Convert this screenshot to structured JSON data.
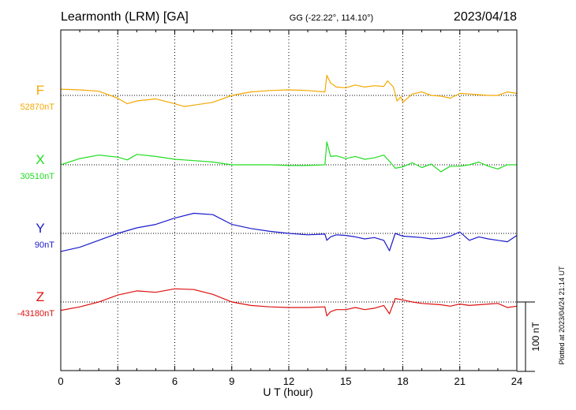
{
  "header": {
    "station": "Learmonth (LRM)  [GA]",
    "coords": "GG (-22.22°, 114.10°)",
    "date": "2023/04/18"
  },
  "footer": {
    "plotted": "Plotted at 2023/04/24 21:14 UT"
  },
  "chart_data": {
    "type": "line",
    "title": "Learmonth (LRM)  [GA]",
    "xlabel": "U T (hour)",
    "xlim": [
      0,
      24
    ],
    "xticks": [
      0,
      3,
      6,
      9,
      12,
      15,
      18,
      21,
      24
    ],
    "xtick_labels": [
      "0",
      "3",
      "6",
      "9",
      "12",
      "15",
      "18",
      "21",
      "24"
    ],
    "grid": true,
    "scale_bar": "100 nT",
    "y_scale_nT_per_bar": 100,
    "series": [
      {
        "name": "F",
        "baseline_label": "52870nT",
        "baseline_nT": 52870,
        "color": "#f5a800",
        "x": [
          0,
          1,
          2,
          3,
          3.5,
          4,
          5,
          6,
          6.5,
          7,
          8,
          9,
          10,
          11,
          12,
          13,
          13.9,
          14,
          14.2,
          14.5,
          15,
          15.5,
          16,
          16.5,
          17,
          17.2,
          17.5,
          17.7,
          17.9,
          18,
          18.5,
          19,
          19.5,
          20,
          20.5,
          21,
          21.5,
          22,
          22.5,
          23,
          23.5,
          24
        ],
        "values": [
          9,
          8,
          6,
          -4,
          -12,
          -8,
          -5,
          -12,
          -16,
          -14,
          -10,
          0,
          5,
          7,
          8,
          7,
          5,
          29,
          18,
          12,
          11,
          15,
          12,
          14,
          13,
          21,
          12,
          -8,
          -2,
          -10,
          2,
          5,
          0,
          -1,
          -4,
          3,
          2,
          1,
          0,
          0,
          5,
          3
        ]
      },
      {
        "name": "X",
        "baseline_label": "30510nT",
        "baseline_nT": 30510,
        "color": "#22dd22",
        "x": [
          0,
          1,
          2,
          3,
          3.5,
          4,
          5,
          6,
          7,
          8,
          9,
          10,
          11,
          12,
          13,
          13.9,
          14,
          14.2,
          14.5,
          15,
          15.5,
          16,
          16.5,
          17,
          17.3,
          17.6,
          18,
          18.5,
          19,
          19.5,
          20,
          20.5,
          21,
          21.5,
          22,
          22.5,
          23,
          23.5,
          24
        ],
        "values": [
          0,
          9,
          14,
          11,
          7,
          15,
          12,
          8,
          6,
          4,
          0,
          0,
          0,
          -1,
          -1,
          0,
          33,
          12,
          13,
          9,
          12,
          8,
          10,
          14,
          5,
          -5,
          -3,
          3,
          -4,
          1,
          -10,
          -2,
          -2,
          0,
          4,
          -2,
          -6,
          0,
          0
        ]
      },
      {
        "name": "Y",
        "baseline_label": "90nT",
        "baseline_nT": 90,
        "color": "#1a1acc",
        "x": [
          0,
          1,
          2,
          3,
          4,
          5,
          6,
          7,
          8,
          9,
          10,
          11,
          12,
          13,
          13.9,
          14,
          14.2,
          14.5,
          15,
          15.5,
          16,
          16.5,
          17,
          17.3,
          17.6,
          18,
          18.5,
          19,
          19.5,
          20,
          20.5,
          21,
          21.5,
          22,
          22.5,
          23,
          23.5,
          24
        ],
        "values": [
          -26,
          -20,
          -10,
          0,
          8,
          13,
          22,
          29,
          27,
          13,
          7,
          3,
          0,
          -2,
          -1,
          -10,
          -5,
          -2,
          -3,
          -5,
          -8,
          -6,
          -10,
          -25,
          0,
          -4,
          -5,
          -6,
          -8,
          -7,
          -4,
          2,
          -10,
          -5,
          -8,
          -10,
          -12,
          -3
        ]
      },
      {
        "name": "Z",
        "baseline_label": "-43180nT",
        "baseline_nT": -43180,
        "color": "#dd1111",
        "x": [
          0,
          1,
          2,
          3,
          4,
          5,
          6,
          7,
          8,
          9,
          10,
          11,
          12,
          13,
          13.9,
          14,
          14.2,
          14.5,
          15,
          15.5,
          16,
          16.5,
          17,
          17.3,
          17.6,
          18,
          18.5,
          19,
          19.5,
          20,
          20.5,
          21,
          21.5,
          22,
          22.5,
          23,
          23.5,
          24
        ],
        "values": [
          -12,
          -7,
          0,
          10,
          16,
          14,
          19,
          18,
          11,
          0,
          -5,
          -7,
          -8,
          -8,
          -7,
          -20,
          -14,
          -11,
          -11,
          -8,
          -11,
          -9,
          -5,
          -17,
          5,
          3,
          0,
          -2,
          -3,
          -4,
          -6,
          -3,
          -5,
          -4,
          -3,
          -2,
          -8,
          -6
        ]
      }
    ]
  }
}
